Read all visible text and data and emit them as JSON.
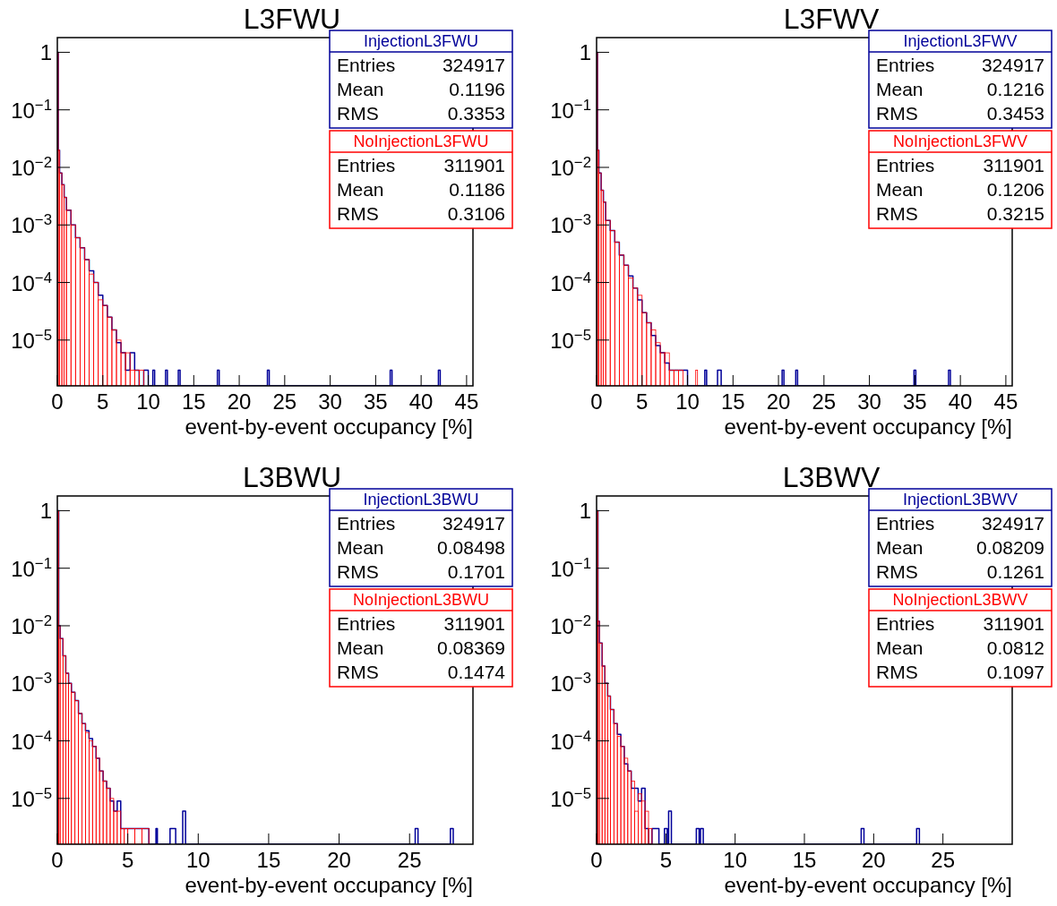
{
  "chart_data": [
    {
      "type": "histogram",
      "title": "L3FWU",
      "xlabel": "event-by-event occupancy [%]",
      "log": "y",
      "legend": "top right",
      "xlim": [
        0,
        45.7
      ],
      "xticks": [
        0,
        5,
        10,
        15,
        20,
        25,
        30,
        35,
        40,
        45
      ],
      "ylim": [
        1.6e-06,
        1.8
      ],
      "yticks": [
        {
          "value": 1,
          "label": "1"
        },
        {
          "value": 0.1,
          "label": "10$^{−1}$"
        },
        {
          "value": 0.01,
          "label": "10$^{−2}$"
        },
        {
          "value": 0.001,
          "label": "10$^{−3}$"
        },
        {
          "value": 0.0001,
          "label": "10$^{−4}$"
        },
        {
          "value": 1e-05,
          "label": "10$^{−5}$"
        }
      ],
      "bins": [
        0,
        0.1,
        0.25,
        0.5,
        0.75,
        1,
        1.5,
        2,
        2.5,
        3,
        3.5,
        4,
        4.5,
        5,
        5.5,
        6,
        6.5,
        7,
        7.5,
        8,
        8.5,
        9,
        9.5,
        10,
        10.5,
        10.7,
        11.9,
        12.1,
        13.3,
        13.5,
        17.6,
        17.8,
        23.1,
        23.3,
        36.6,
        36.8,
        41.9,
        42.1
      ],
      "series": [
        {
          "name": "InjectionL3FWU",
          "color": "#000099",
          "values": [
            1,
            0.02,
            0.008,
            0.005,
            0.003,
            0.0018,
            0.001,
            0.0006,
            0.0004,
            0.00025,
            0.00016,
            0.0001,
            6e-05,
            4e-05,
            2.5e-05,
            1.5e-05,
            9e-06,
            6e-06,
            3e-06,
            6e-06,
            3e-06,
            null,
            3e-06,
            null,
            3e-06,
            null,
            3e-06,
            null,
            3e-06,
            null,
            3e-06,
            null,
            3e-06,
            null,
            3e-06,
            null,
            3e-06
          ]
        },
        {
          "name": "NoInjectionL3FWU",
          "color": "#ff0000",
          "values": [
            1,
            0.02,
            0.008,
            0.005,
            0.003,
            0.0018,
            0.001,
            0.0006,
            0.0004,
            0.00025,
            0.00014,
            0.0001,
            5e-05,
            4e-05,
            2.5e-05,
            1.5e-05,
            1e-05,
            6e-06,
            6e-06,
            3e-06,
            3e-06,
            3e-06,
            null,
            null,
            null,
            null,
            null,
            null,
            null,
            null,
            null,
            null,
            null,
            null,
            null,
            null,
            null
          ]
        }
      ],
      "annotations": [
        "Entries 324917",
        "Mean 0.1196",
        "RMS 0.3353",
        "Entries 311901",
        "Mean 0.1186",
        "RMS 0.3106"
      ]
    },
    {
      "type": "histogram",
      "title": "L3FWV",
      "xlabel": "event-by-event occupancy [%]",
      "log": "y",
      "legend": "top right",
      "xlim": [
        0,
        45.7
      ],
      "xticks": [
        0,
        5,
        10,
        15,
        20,
        25,
        30,
        35,
        40,
        45
      ],
      "ylim": [
        1.6e-06,
        1.8
      ],
      "yticks": [
        {
          "value": 1,
          "label": "1"
        },
        {
          "value": 0.1,
          "label": "10$^{−1}$"
        },
        {
          "value": 0.01,
          "label": "10$^{−2}$"
        },
        {
          "value": 0.001,
          "label": "10$^{−3}$"
        },
        {
          "value": 0.0001,
          "label": "10$^{−4}$"
        },
        {
          "value": 1e-05,
          "label": "10$^{−5}$"
        }
      ],
      "bins": [
        0,
        0.1,
        0.25,
        0.5,
        0.75,
        1,
        1.5,
        2,
        2.5,
        3,
        3.5,
        4,
        4.5,
        5,
        5.5,
        6,
        6.5,
        7,
        7.5,
        8,
        8.5,
        9,
        9.5,
        10,
        10.9,
        11.1,
        11.9,
        12.1,
        13.3,
        13.7,
        20.4,
        20.6,
        21.9,
        22.1,
        34.9,
        35.1,
        38.7,
        38.9
      ],
      "series": [
        {
          "name": "InjectionL3FWV",
          "color": "#000099",
          "values": [
            1,
            0.02,
            0.008,
            0.004,
            0.0025,
            0.0012,
            0.0008,
            0.0005,
            0.0003,
            0.0002,
            0.00013,
            8e-05,
            5e-05,
            3e-05,
            2e-05,
            1.2e-05,
            8e-06,
            6e-06,
            4e-06,
            3e-06,
            3e-06,
            3e-06,
            3e-06,
            null,
            null,
            null,
            3e-06,
            null,
            3e-06,
            null,
            3e-06,
            null,
            3e-06,
            null,
            3e-06,
            null,
            3e-06
          ]
        },
        {
          "name": "NoInjectionL3FWV",
          "color": "#ff0000",
          "values": [
            1,
            0.02,
            0.008,
            0.004,
            0.0025,
            0.0012,
            0.0008,
            0.0005,
            0.0003,
            0.0002,
            0.00012,
            8e-05,
            6e-05,
            3e-05,
            2e-05,
            1.5e-05,
            9e-06,
            6e-06,
            6e-06,
            3e-06,
            3e-06,
            3e-06,
            null,
            null,
            3e-06,
            null,
            null,
            null,
            null,
            null,
            null,
            null,
            null,
            null,
            null,
            null,
            null
          ]
        }
      ],
      "annotations": [
        "Entries 324917",
        "Mean 0.1216",
        "RMS 0.3453",
        "Entries 311901",
        "Mean 0.1206",
        "RMS 0.3215"
      ]
    },
    {
      "type": "histogram",
      "title": "L3BWU",
      "xlabel": "event-by-event occupancy [%]",
      "log": "y",
      "legend": "top right",
      "xlim": [
        0,
        29.5
      ],
      "xticks": [
        0,
        5,
        10,
        15,
        20,
        25
      ],
      "ylim": [
        1.6e-06,
        1.8
      ],
      "yticks": [
        {
          "value": 1,
          "label": "1"
        },
        {
          "value": 0.1,
          "label": "10$^{−1}$"
        },
        {
          "value": 0.01,
          "label": "10$^{−2}$"
        },
        {
          "value": 0.001,
          "label": "10$^{−3}$"
        },
        {
          "value": 0.0001,
          "label": "10$^{−4}$"
        },
        {
          "value": 1e-05,
          "label": "10$^{−5}$"
        }
      ],
      "bins": [
        0,
        0.1,
        0.2,
        0.4,
        0.6,
        0.8,
        1,
        1.25,
        1.5,
        1.75,
        2,
        2.25,
        2.5,
        2.75,
        3,
        3.25,
        3.5,
        3.75,
        4,
        4.25,
        4.5,
        4.75,
        5,
        5.5,
        6,
        6.5,
        7,
        7.1,
        7.3,
        8,
        8.4,
        8.9,
        9.1,
        25.4,
        25.6,
        27.9,
        28.1
      ],
      "series": [
        {
          "name": "InjectionL3BWU",
          "color": "#000099",
          "values": [
            1,
            0.01,
            0.006,
            0.003,
            0.0015,
            0.001,
            0.0007,
            0.0005,
            0.0003,
            0.0002,
            0.00015,
            0.00011,
            8e-05,
            5e-05,
            3e-05,
            2e-05,
            1.5e-05,
            9e-06,
            6e-06,
            9e-06,
            3e-06,
            3e-06,
            3e-06,
            3e-06,
            3e-06,
            null,
            3e-06,
            null,
            null,
            3e-06,
            null,
            6e-06,
            null,
            3e-06,
            null,
            3e-06
          ]
        },
        {
          "name": "NoInjectionL3BWU",
          "color": "#ff0000",
          "values": [
            1,
            0.01,
            0.006,
            0.003,
            0.0015,
            0.001,
            0.0007,
            0.0005,
            0.0003,
            0.0002,
            0.00014,
            0.0001,
            8e-05,
            5e-05,
            3e-05,
            2e-05,
            1.5e-05,
            1e-05,
            6e-06,
            6e-06,
            3e-06,
            3e-06,
            3e-06,
            3e-06,
            3e-06,
            null,
            null,
            null,
            null,
            null,
            null,
            null,
            null,
            null,
            null,
            null
          ]
        }
      ],
      "annotations": [
        "Entries 324917",
        "Mean 0.08498",
        "RMS 0.1701",
        "Entries 311901",
        "Mean 0.08369",
        "RMS 0.1474"
      ]
    },
    {
      "type": "histogram",
      "title": "L3BWV",
      "xlabel": "event-by-event occupancy [%]",
      "log": "y",
      "legend": "top right",
      "xlim": [
        0,
        30
      ],
      "xticks": [
        0,
        5,
        10,
        15,
        20,
        25
      ],
      "ylim": [
        1.6e-06,
        1.8
      ],
      "yticks": [
        {
          "value": 1,
          "label": "1"
        },
        {
          "value": 0.1,
          "label": "10$^{−1}$"
        },
        {
          "value": 0.01,
          "label": "10$^{−2}$"
        },
        {
          "value": 0.001,
          "label": "10$^{−3}$"
        },
        {
          "value": 0.0001,
          "label": "10$^{−4}$"
        },
        {
          "value": 1e-05,
          "label": "10$^{−5}$"
        }
      ],
      "bins": [
        0,
        0.1,
        0.2,
        0.4,
        0.6,
        0.8,
        1,
        1.25,
        1.5,
        1.75,
        2,
        2.25,
        2.5,
        2.75,
        3,
        3.25,
        3.5,
        3.75,
        4,
        4.5,
        4.9,
        5.1,
        5.2,
        5.4,
        7.2,
        7.4,
        7.5,
        7.7,
        19.1,
        19.3,
        23.1,
        23.3
      ],
      "series": [
        {
          "name": "InjectionL3BWV",
          "color": "#000099",
          "values": [
            1,
            0.012,
            0.005,
            0.002,
            0.001,
            0.0006,
            0.00035,
            0.0002,
            0.00013,
            8e-05,
            4e-05,
            3e-05,
            1.5e-05,
            1.5e-05,
            9e-06,
            1.5e-05,
            3e-06,
            null,
            3e-06,
            null,
            3e-06,
            null,
            6e-06,
            null,
            3e-06,
            null,
            3e-06,
            null,
            3e-06,
            null,
            3e-06
          ]
        },
        {
          "name": "NoInjectionL3BWV",
          "color": "#ff0000",
          "values": [
            1,
            0.012,
            0.005,
            0.002,
            0.001,
            0.0006,
            0.00035,
            0.0002,
            0.00012,
            8e-05,
            5e-05,
            3e-05,
            2e-05,
            6e-06,
            1.2e-05,
            9e-06,
            6e-06,
            3e-06,
            null,
            null,
            null,
            null,
            null,
            null,
            null,
            null,
            null,
            null,
            null,
            null,
            null
          ]
        }
      ],
      "annotations": [
        "Entries 324917",
        "Mean 0.08209",
        "RMS 0.1261",
        "Entries 311901",
        "Mean 0.0812",
        "RMS 0.1097"
      ]
    }
  ]
}
